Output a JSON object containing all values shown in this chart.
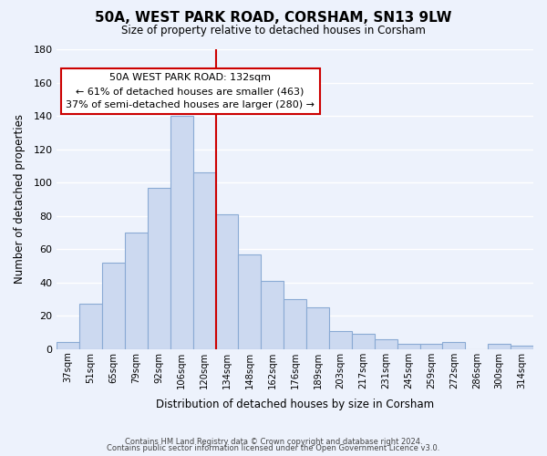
{
  "title": "50A, WEST PARK ROAD, CORSHAM, SN13 9LW",
  "subtitle": "Size of property relative to detached houses in Corsham",
  "xlabel": "Distribution of detached houses by size in Corsham",
  "ylabel": "Number of detached properties",
  "categories": [
    "37sqm",
    "51sqm",
    "65sqm",
    "79sqm",
    "92sqm",
    "106sqm",
    "120sqm",
    "134sqm",
    "148sqm",
    "162sqm",
    "176sqm",
    "189sqm",
    "203sqm",
    "217sqm",
    "231sqm",
    "245sqm",
    "259sqm",
    "272sqm",
    "286sqm",
    "300sqm",
    "314sqm"
  ],
  "values": [
    4,
    27,
    52,
    70,
    97,
    140,
    106,
    81,
    57,
    41,
    30,
    25,
    11,
    9,
    6,
    3,
    3,
    4,
    0,
    3,
    2
  ],
  "bar_color": "#ccd9f0",
  "bar_edge_color": "#8aaad4",
  "marker_index": 6,
  "annotation_title": "50A WEST PARK ROAD: 132sqm",
  "annotation_line1": "← 61% of detached houses are smaller (463)",
  "annotation_line2": "37% of semi-detached houses are larger (280) →",
  "annotation_box_color": "#ffffff",
  "annotation_box_edge": "#cc0000",
  "marker_line_color": "#cc0000",
  "ylim": [
    0,
    180
  ],
  "yticks": [
    0,
    20,
    40,
    60,
    80,
    100,
    120,
    140,
    160,
    180
  ],
  "footer1": "Contains HM Land Registry data © Crown copyright and database right 2024.",
  "footer2": "Contains public sector information licensed under the Open Government Licence v3.0.",
  "background_color": "#edf2fc",
  "grid_color": "#ffffff"
}
